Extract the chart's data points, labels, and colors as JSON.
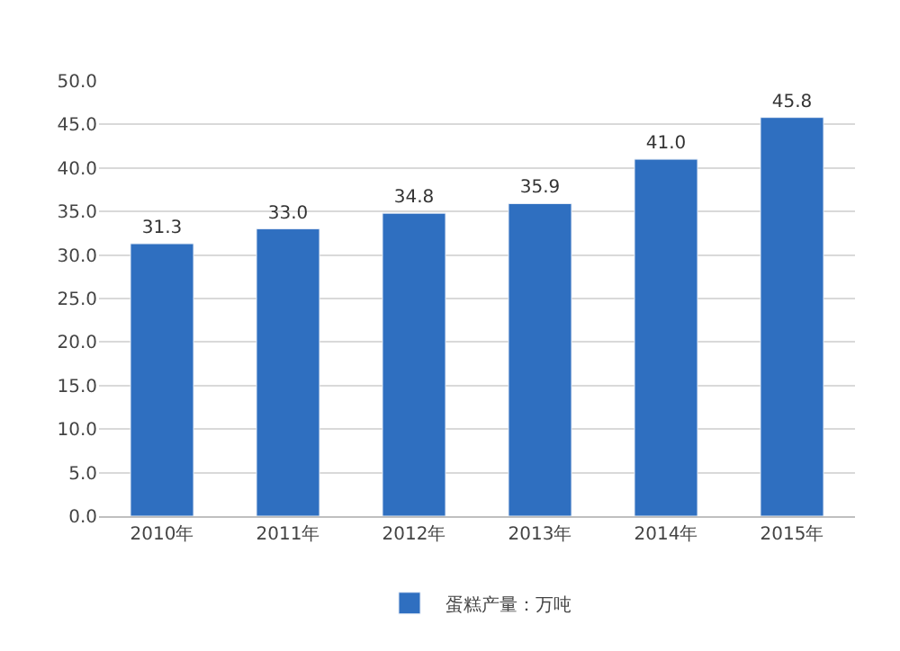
{
  "chart_data": {
    "type": "bar",
    "categories": [
      "2010年",
      "2011年",
      "2012年",
      "2013年",
      "2014年",
      "2015年"
    ],
    "series": [
      {
        "name": "蛋糕产量：万吨",
        "color": "#2f6fc0",
        "values": [
          31.3,
          33.0,
          34.8,
          35.9,
          41.0,
          45.8
        ]
      }
    ],
    "ylim": [
      0,
      50
    ],
    "yticks": [
      {
        "value": 0,
        "label": "0.0"
      },
      {
        "value": 5,
        "label": "5.0"
      },
      {
        "value": 10,
        "label": "10.0"
      },
      {
        "value": 15,
        "label": "15.0"
      },
      {
        "value": 20,
        "label": "20.0"
      },
      {
        "value": 25,
        "label": "25.0"
      },
      {
        "value": 30,
        "label": "30.0"
      },
      {
        "value": 35,
        "label": "35.0"
      },
      {
        "value": 40,
        "label": "40.0"
      },
      {
        "value": 45,
        "label": "45.0"
      },
      {
        "value": 50,
        "label": "50.0"
      }
    ],
    "value_labels": [
      "31.3",
      "33.0",
      "34.8",
      "35.9",
      "41.0",
      "45.8"
    ],
    "grid": "y",
    "legend": "bottom"
  }
}
